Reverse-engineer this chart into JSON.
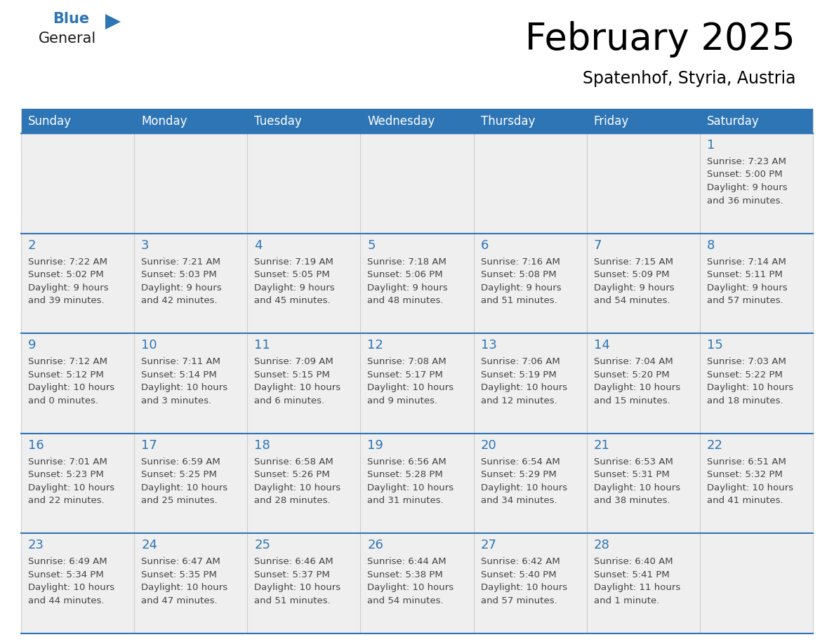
{
  "title": "February 2025",
  "subtitle": "Spatenhof, Styria, Austria",
  "days_of_week": [
    "Sunday",
    "Monday",
    "Tuesday",
    "Wednesday",
    "Thursday",
    "Friday",
    "Saturday"
  ],
  "header_bg": "#2E75B6",
  "header_text": "#FFFFFF",
  "cell_bg": "#EFEFEF",
  "cell_border_blue": "#2E75B6",
  "cell_border_light": "#CCCCCC",
  "day_number_color": "#2E75B6",
  "text_color": "#444444",
  "logo_general_color": "#1a1a1a",
  "logo_blue_color": "#2E75B6",
  "calendar_data": [
    [
      {
        "day": null,
        "info": null
      },
      {
        "day": null,
        "info": null
      },
      {
        "day": null,
        "info": null
      },
      {
        "day": null,
        "info": null
      },
      {
        "day": null,
        "info": null
      },
      {
        "day": null,
        "info": null
      },
      {
        "day": 1,
        "info": "Sunrise: 7:23 AM\nSunset: 5:00 PM\nDaylight: 9 hours\nand 36 minutes."
      }
    ],
    [
      {
        "day": 2,
        "info": "Sunrise: 7:22 AM\nSunset: 5:02 PM\nDaylight: 9 hours\nand 39 minutes."
      },
      {
        "day": 3,
        "info": "Sunrise: 7:21 AM\nSunset: 5:03 PM\nDaylight: 9 hours\nand 42 minutes."
      },
      {
        "day": 4,
        "info": "Sunrise: 7:19 AM\nSunset: 5:05 PM\nDaylight: 9 hours\nand 45 minutes."
      },
      {
        "day": 5,
        "info": "Sunrise: 7:18 AM\nSunset: 5:06 PM\nDaylight: 9 hours\nand 48 minutes."
      },
      {
        "day": 6,
        "info": "Sunrise: 7:16 AM\nSunset: 5:08 PM\nDaylight: 9 hours\nand 51 minutes."
      },
      {
        "day": 7,
        "info": "Sunrise: 7:15 AM\nSunset: 5:09 PM\nDaylight: 9 hours\nand 54 minutes."
      },
      {
        "day": 8,
        "info": "Sunrise: 7:14 AM\nSunset: 5:11 PM\nDaylight: 9 hours\nand 57 minutes."
      }
    ],
    [
      {
        "day": 9,
        "info": "Sunrise: 7:12 AM\nSunset: 5:12 PM\nDaylight: 10 hours\nand 0 minutes."
      },
      {
        "day": 10,
        "info": "Sunrise: 7:11 AM\nSunset: 5:14 PM\nDaylight: 10 hours\nand 3 minutes."
      },
      {
        "day": 11,
        "info": "Sunrise: 7:09 AM\nSunset: 5:15 PM\nDaylight: 10 hours\nand 6 minutes."
      },
      {
        "day": 12,
        "info": "Sunrise: 7:08 AM\nSunset: 5:17 PM\nDaylight: 10 hours\nand 9 minutes."
      },
      {
        "day": 13,
        "info": "Sunrise: 7:06 AM\nSunset: 5:19 PM\nDaylight: 10 hours\nand 12 minutes."
      },
      {
        "day": 14,
        "info": "Sunrise: 7:04 AM\nSunset: 5:20 PM\nDaylight: 10 hours\nand 15 minutes."
      },
      {
        "day": 15,
        "info": "Sunrise: 7:03 AM\nSunset: 5:22 PM\nDaylight: 10 hours\nand 18 minutes."
      }
    ],
    [
      {
        "day": 16,
        "info": "Sunrise: 7:01 AM\nSunset: 5:23 PM\nDaylight: 10 hours\nand 22 minutes."
      },
      {
        "day": 17,
        "info": "Sunrise: 6:59 AM\nSunset: 5:25 PM\nDaylight: 10 hours\nand 25 minutes."
      },
      {
        "day": 18,
        "info": "Sunrise: 6:58 AM\nSunset: 5:26 PM\nDaylight: 10 hours\nand 28 minutes."
      },
      {
        "day": 19,
        "info": "Sunrise: 6:56 AM\nSunset: 5:28 PM\nDaylight: 10 hours\nand 31 minutes."
      },
      {
        "day": 20,
        "info": "Sunrise: 6:54 AM\nSunset: 5:29 PM\nDaylight: 10 hours\nand 34 minutes."
      },
      {
        "day": 21,
        "info": "Sunrise: 6:53 AM\nSunset: 5:31 PM\nDaylight: 10 hours\nand 38 minutes."
      },
      {
        "day": 22,
        "info": "Sunrise: 6:51 AM\nSunset: 5:32 PM\nDaylight: 10 hours\nand 41 minutes."
      }
    ],
    [
      {
        "day": 23,
        "info": "Sunrise: 6:49 AM\nSunset: 5:34 PM\nDaylight: 10 hours\nand 44 minutes."
      },
      {
        "day": 24,
        "info": "Sunrise: 6:47 AM\nSunset: 5:35 PM\nDaylight: 10 hours\nand 47 minutes."
      },
      {
        "day": 25,
        "info": "Sunrise: 6:46 AM\nSunset: 5:37 PM\nDaylight: 10 hours\nand 51 minutes."
      },
      {
        "day": 26,
        "info": "Sunrise: 6:44 AM\nSunset: 5:38 PM\nDaylight: 10 hours\nand 54 minutes."
      },
      {
        "day": 27,
        "info": "Sunrise: 6:42 AM\nSunset: 5:40 PM\nDaylight: 10 hours\nand 57 minutes."
      },
      {
        "day": 28,
        "info": "Sunrise: 6:40 AM\nSunset: 5:41 PM\nDaylight: 11 hours\nand 1 minute."
      },
      {
        "day": null,
        "info": null
      }
    ]
  ]
}
